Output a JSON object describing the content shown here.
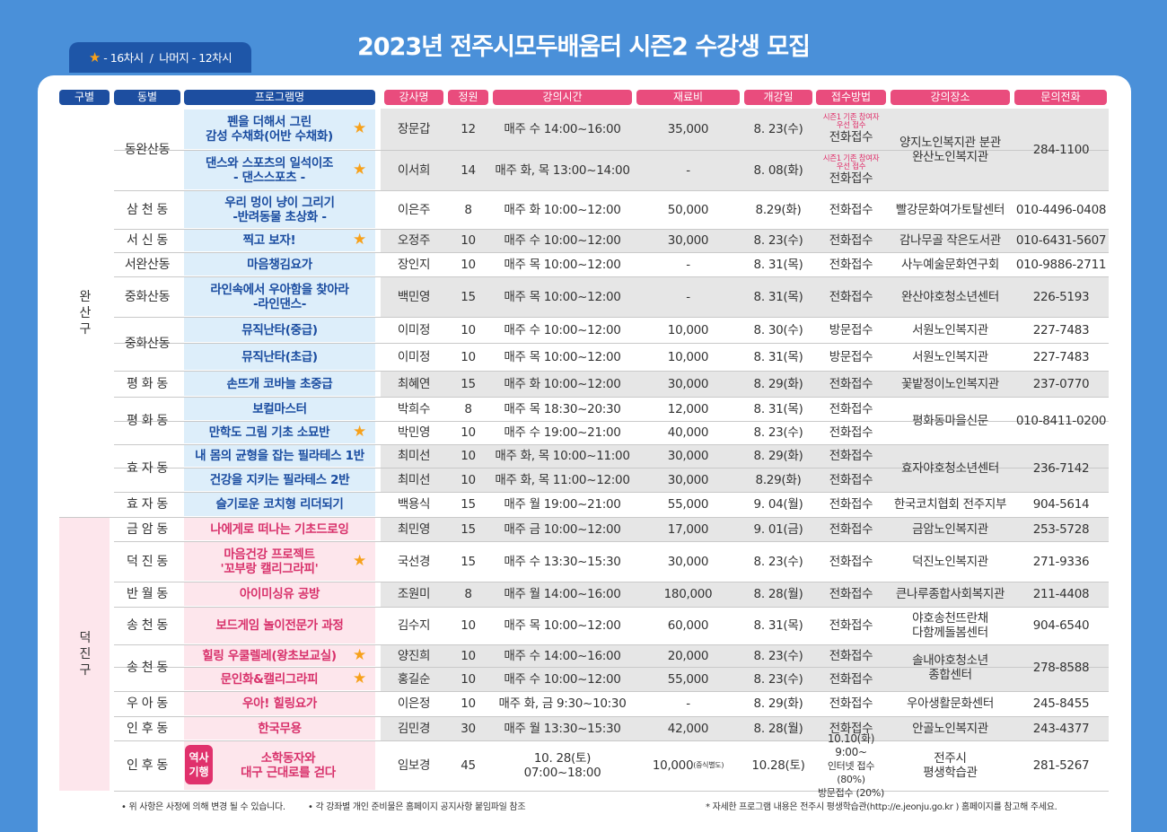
{
  "title": "2023년 전주시모두배움터 시즌2 수강생 모집",
  "legend": {
    "star": "★",
    "star_text": "- 16차시",
    "sep": "/",
    "rest": "나머지 - 12차시"
  },
  "headers": [
    "구별",
    "동별",
    "프로그램명",
    "강사명",
    "정원",
    "강의시간",
    "재료비",
    "개강일",
    "접수방법",
    "강의장소",
    "문의전화"
  ],
  "gu": [
    {
      "name": "완\n산\n구"
    },
    {
      "name": "덕\n진\n구"
    }
  ],
  "dongs": [
    "동완산동",
    "삼 천 동",
    "서 신 동",
    "서완산동",
    "중화산동",
    "중화산동",
    "평 화 동",
    "평 화 동",
    "효 자 동",
    "효 자 동",
    "금 암 동",
    "덕 진 동",
    "반 월 동",
    "송 천 동",
    "송 천 동",
    "우 아 동",
    "인 후 동",
    "인 후 동"
  ],
  "rows": [
    {
      "prog": "펜을 더해서 그린\n감성 수채화(어반 수채화)",
      "star": true,
      "teacher": "장문갑",
      "cap": "12",
      "time": "매주 수 14:00~16:00",
      "fee": "35,000",
      "start": "8. 23(수)",
      "note": "시즌1 기존 참여자\n우선 접수",
      "method": "전화접수"
    },
    {
      "prog": "댄스와 스포츠의 일석이조\n- 댄스스포츠 -",
      "star": true,
      "teacher": "이서희",
      "cap": "14",
      "time": "매주 화, 목 13:00~14:00",
      "fee": "-",
      "start": "8. 08(화)",
      "note": "시즌1 기존 참여자\n우선 접수",
      "method": "전화접수"
    },
    {
      "prog": "우리 멍이 냥이 그리기\n-반려동물 초상화 -",
      "star": false,
      "teacher": "이은주",
      "cap": "8",
      "time": "매주 화 10:00~12:00",
      "fee": "50,000",
      "start": "8.29(화)",
      "method": "전화접수",
      "place": "빨강문화여가토탈센터",
      "phone": "010-4496-0408"
    },
    {
      "prog": "찍고 보자!",
      "star": true,
      "teacher": "오정주",
      "cap": "10",
      "time": "매주 수 10:00~12:00",
      "fee": "30,000",
      "start": "8. 23(수)",
      "method": "전화접수",
      "place": "감나무골 작은도서관",
      "phone": "010-6431-5607"
    },
    {
      "prog": "마음챙김요가",
      "star": false,
      "teacher": "장인지",
      "cap": "10",
      "time": "매주 목 10:00~12:00",
      "fee": "-",
      "start": "8. 31(목)",
      "method": "전화접수",
      "place": "사누예술문화연구회",
      "phone": "010-9886-2711"
    },
    {
      "prog": "라인속에서 우아함을 찾아라\n-라인댄스-",
      "star": false,
      "teacher": "백민영",
      "cap": "15",
      "time": "매주 목 10:00~12:00",
      "fee": "-",
      "start": "8. 31(목)",
      "method": "전화접수",
      "place": "완산야호청소년센터",
      "phone": "226-5193"
    },
    {
      "prog": "뮤직난타(중급)",
      "star": false,
      "teacher": "이미정",
      "cap": "10",
      "time": "매주 수 10:00~12:00",
      "fee": "10,000",
      "start": "8. 30(수)",
      "method": "방문접수",
      "place": "서원노인복지관",
      "phone": "227-7483"
    },
    {
      "prog": "뮤직난타(초급)",
      "star": false,
      "teacher": "이미정",
      "cap": "10",
      "time": "매주 목 10:00~12:00",
      "fee": "10,000",
      "start": "8. 31(목)",
      "method": "방문접수",
      "place": "서원노인복지관",
      "phone": "227-7483"
    },
    {
      "prog": "손뜨개 코바늘 초중급",
      "star": false,
      "teacher": "최혜연",
      "cap": "15",
      "time": "매주 화 10:00~12:00",
      "fee": "30,000",
      "start": "8. 29(화)",
      "method": "전화접수",
      "place": "꽃밭정이노인복지관",
      "phone": "237-0770"
    },
    {
      "prog": "보컬마스터",
      "star": false,
      "teacher": "박희수",
      "cap": "8",
      "time": "매주 목 18:30~20:30",
      "fee": "12,000",
      "start": "8. 31(목)",
      "method": "전화접수"
    },
    {
      "prog": "만학도 그림 기초 소묘반",
      "star": true,
      "teacher": "박민영",
      "cap": "10",
      "time": "매주 수 19:00~21:00",
      "fee": "40,000",
      "start": "8. 23(수)",
      "method": "전화접수"
    },
    {
      "prog": "내 몸의 균형을 잡는 필라테스 1반",
      "star": false,
      "teacher": "최미선",
      "cap": "10",
      "time": "매주 화, 목 10:00~11:00",
      "fee": "30,000",
      "start": "8. 29(화)",
      "method": "전화접수"
    },
    {
      "prog": "건강을 지키는 필라테스 2반",
      "star": false,
      "teacher": "최미선",
      "cap": "10",
      "time": "매주 화, 목 11:00~12:00",
      "fee": "30,000",
      "start": "8.29(화)",
      "method": "전화접수"
    },
    {
      "prog": "슬기로운 코치형 리더되기",
      "star": false,
      "teacher": "백용식",
      "cap": "15",
      "time": "매주 월 19:00~21:00",
      "fee": "55,000",
      "start": "9. 04(월)",
      "method": "전화접수",
      "place": "한국코치협회 전주지부",
      "phone": "904-5614"
    },
    {
      "prog": "나에게로 떠나는 기초드로잉",
      "star": false,
      "teacher": "최민영",
      "cap": "15",
      "time": "매주 금 10:00~12:00",
      "fee": "17,000",
      "start": "9. 01(금)",
      "method": "전화접수",
      "place": "금암노인복지관",
      "phone": "253-5728"
    },
    {
      "prog": "마음건강 프로젝트\n'꼬부랑 캘리그라피'",
      "star": true,
      "teacher": "국선경",
      "cap": "15",
      "time": "매주 수 13:30~15:30",
      "fee": "30,000",
      "start": "8. 23(수)",
      "method": "전화접수",
      "place": "덕진노인복지관",
      "phone": "271-9336"
    },
    {
      "prog": "아이미싱유 공방",
      "star": false,
      "teacher": "조원미",
      "cap": "8",
      "time": "매주 월 14:00~16:00",
      "fee": "180,000",
      "start": "8. 28(월)",
      "method": "전화접수",
      "place": "큰나루종합사회복지관",
      "phone": "211-4408"
    },
    {
      "prog": "보드게임 놀이전문가 과정",
      "star": false,
      "teacher": "김수지",
      "cap": "10",
      "time": "매주 목 10:00~12:00",
      "fee": "60,000",
      "start": "8. 31(목)",
      "method": "전화접수",
      "place": "야호송천뜨란채\n다함께돌봄센터",
      "phone": "904-6540"
    },
    {
      "prog": "힐링 우쿨렐레(왕초보교실)",
      "star": true,
      "teacher": "양진희",
      "cap": "10",
      "time": "매주 수 14:00~16:00",
      "fee": "20,000",
      "start": "8. 23(수)",
      "method": "전화접수"
    },
    {
      "prog": "문인화&캘리그라피",
      "star": true,
      "teacher": "홍길순",
      "cap": "10",
      "time": "매주 수 10:00~12:00",
      "fee": "55,000",
      "start": "8. 23(수)",
      "method": "전화접수"
    },
    {
      "prog": "우아! 힐링요가",
      "star": false,
      "teacher": "이은정",
      "cap": "10",
      "time": "매주 화, 금 9:30~10:30",
      "fee": "-",
      "start": "8. 29(화)",
      "method": "전화접수",
      "place": "우아생활문화센터",
      "phone": "245-8455"
    },
    {
      "prog": "한국무용",
      "star": false,
      "teacher": "김민경",
      "cap": "30",
      "time": "매주 월 13:30~15:30",
      "fee": "42,000",
      "start": "8. 28(월)",
      "method": "전화접수",
      "place": "안골노인복지관",
      "phone": "243-4377"
    },
    {
      "prog": "소학동자와\n대구 근대로를 걷다",
      "star": false,
      "badge": "역사\n기행",
      "teacher": "임보경",
      "cap": "45",
      "time": "10. 28(토)\n07:00~18:00",
      "fee": "10,000",
      "fee_note": "(중식별도)",
      "start": "10.28(토)",
      "method": "10.10(화) 9:00~\n인터넷 접수 (80%)\n방문접수 (20%)",
      "place": "전주시\n평생학습관",
      "phone": "281-5267"
    }
  ],
  "merged": [
    {
      "place": "양지노인복지관 분관\n완산노인복지관",
      "phone": "284-1100"
    },
    {
      "place": "평화동마을신문",
      "phone": "010-8411-0200"
    },
    {
      "place": "효자야호청소년센터",
      "phone": "236-7142"
    },
    {
      "place": "솔내야호청소년\n종합센터",
      "phone": "278-8588"
    }
  ],
  "footer": {
    "left1": "• 위 사항은 사정에 의해 변경 될 수 있습니다.",
    "left2": "• 각 강좌별 개인 준비물은 홈페이지 공지사항 붙임파일 참조",
    "right": "* 자세한 프로그램 내용은 전주시 평생학습관(http://e.jeonju.go.kr ) 홈페이지를 참고해 주세요."
  },
  "colors": {
    "bg": "#4a90d9",
    "blue_header": "#1d4ea0",
    "pink_header": "#e94c7d",
    "wansan": "#1a4ca0",
    "deokjin": "#d8316b",
    "star": "#f7a11a"
  }
}
